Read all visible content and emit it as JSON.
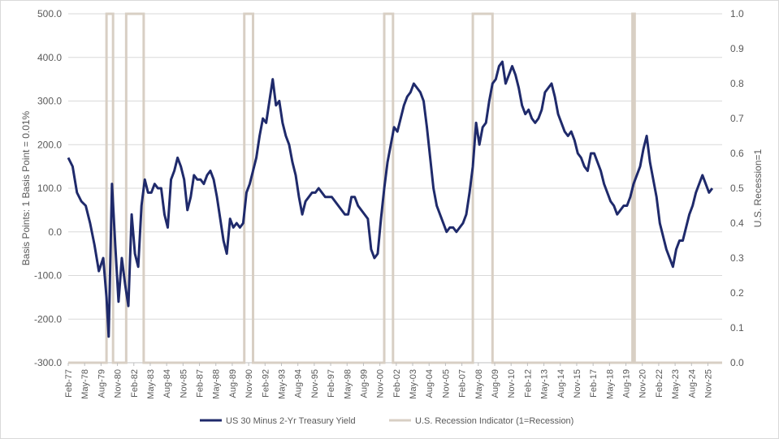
{
  "chart_data": {
    "type": "line",
    "title": "",
    "left_axis": {
      "label": "Basis Points: 1 Basis Point = 0.01%",
      "ylim": [
        -300,
        500
      ],
      "ticks": [
        -300,
        -200,
        -100,
        0,
        100,
        200,
        300,
        400,
        500
      ],
      "tick_labels": [
        "-300.0",
        "-200.0",
        "-100.0",
        "0.0",
        "100.0",
        "200.0",
        "300.0",
        "400.0",
        "500.0"
      ]
    },
    "right_axis": {
      "label": "U.S. Recession=1",
      "ylim": [
        0,
        1
      ],
      "ticks": [
        0,
        0.1,
        0.2,
        0.3,
        0.4,
        0.5,
        0.6,
        0.7,
        0.8,
        0.9,
        1
      ],
      "tick_labels": [
        "0.0",
        "0.1",
        "0.2",
        "0.3",
        "0.4",
        "0.5",
        "0.6",
        "0.7",
        "0.8",
        "0.9",
        "1.0"
      ]
    },
    "x_axis": {
      "range": [
        "1977-02",
        "2026-12"
      ],
      "tick_dates": [
        "1977-02",
        "1978-05",
        "1979-08",
        "1980-11",
        "1982-02",
        "1983-05",
        "1984-08",
        "1985-11",
        "1987-02",
        "1988-05",
        "1989-08",
        "1990-11",
        "1992-02",
        "1993-05",
        "1994-08",
        "1995-11",
        "1997-02",
        "1998-05",
        "1999-08",
        "2000-11",
        "2002-02",
        "2003-05",
        "2004-08",
        "2005-11",
        "2007-02",
        "2008-05",
        "2009-08",
        "2010-11",
        "2012-02",
        "2013-05",
        "2014-08",
        "2015-11",
        "2017-02",
        "2018-05",
        "2019-08",
        "2020-11",
        "2022-02",
        "2023-05",
        "2024-08",
        "2025-11"
      ],
      "tick_labels": [
        "Feb-77",
        "May-78",
        "Aug-79",
        "Nov-80",
        "Feb-82",
        "May-83",
        "Aug-84",
        "Nov-85",
        "Feb-87",
        "May-88",
        "Aug-89",
        "Nov-90",
        "Feb-92",
        "May-93",
        "Aug-94",
        "Nov-95",
        "Feb-97",
        "May-98",
        "Aug-99",
        "Nov-00",
        "Feb-02",
        "May-03",
        "Aug-04",
        "Nov-05",
        "Feb-07",
        "May-08",
        "Aug-09",
        "Nov-10",
        "Feb-12",
        "May-13",
        "Aug-14",
        "Nov-15",
        "Feb-17",
        "May-18",
        "Aug-19",
        "Nov-20",
        "Feb-22",
        "May-23",
        "Aug-24",
        "Nov-25"
      ]
    },
    "grid": true,
    "legend_position": "bottom",
    "series": [
      {
        "name": "US 30 Minus 2-Yr Treasury Yield",
        "axis": "left",
        "color": "#1f2a6b",
        "points": [
          [
            "1977-02",
            170
          ],
          [
            "1977-06",
            150
          ],
          [
            "1977-10",
            90
          ],
          [
            "1978-02",
            70
          ],
          [
            "1978-06",
            60
          ],
          [
            "1978-10",
            20
          ],
          [
            "1979-02",
            -30
          ],
          [
            "1979-06",
            -90
          ],
          [
            "1979-10",
            -60
          ],
          [
            "1980-01",
            -150
          ],
          [
            "1980-03",
            -240
          ],
          [
            "1980-06",
            110
          ],
          [
            "1980-09",
            -30
          ],
          [
            "1980-12",
            -160
          ],
          [
            "1981-03",
            -60
          ],
          [
            "1981-06",
            -120
          ],
          [
            "1981-09",
            -170
          ],
          [
            "1981-12",
            40
          ],
          [
            "1982-03",
            -50
          ],
          [
            "1982-06",
            -80
          ],
          [
            "1982-09",
            60
          ],
          [
            "1982-12",
            120
          ],
          [
            "1983-03",
            90
          ],
          [
            "1983-06",
            90
          ],
          [
            "1983-09",
            110
          ],
          [
            "1983-12",
            100
          ],
          [
            "1984-03",
            100
          ],
          [
            "1984-06",
            40
          ],
          [
            "1984-09",
            10
          ],
          [
            "1984-12",
            120
          ],
          [
            "1985-03",
            140
          ],
          [
            "1985-06",
            170
          ],
          [
            "1985-09",
            150
          ],
          [
            "1985-12",
            120
          ],
          [
            "1986-03",
            50
          ],
          [
            "1986-06",
            80
          ],
          [
            "1986-09",
            130
          ],
          [
            "1986-12",
            120
          ],
          [
            "1987-03",
            120
          ],
          [
            "1987-06",
            110
          ],
          [
            "1987-09",
            130
          ],
          [
            "1987-12",
            140
          ],
          [
            "1988-03",
            120
          ],
          [
            "1988-06",
            80
          ],
          [
            "1988-09",
            30
          ],
          [
            "1988-12",
            -20
          ],
          [
            "1989-03",
            -50
          ],
          [
            "1989-06",
            30
          ],
          [
            "1989-09",
            10
          ],
          [
            "1989-12",
            20
          ],
          [
            "1990-03",
            10
          ],
          [
            "1990-06",
            20
          ],
          [
            "1990-09",
            90
          ],
          [
            "1990-12",
            110
          ],
          [
            "1991-03",
            140
          ],
          [
            "1991-06",
            170
          ],
          [
            "1991-09",
            220
          ],
          [
            "1991-12",
            260
          ],
          [
            "1992-03",
            250
          ],
          [
            "1992-06",
            300
          ],
          [
            "1992-09",
            350
          ],
          [
            "1992-12",
            290
          ],
          [
            "1993-03",
            300
          ],
          [
            "1993-06",
            250
          ],
          [
            "1993-09",
            220
          ],
          [
            "1993-12",
            200
          ],
          [
            "1994-03",
            160
          ],
          [
            "1994-06",
            130
          ],
          [
            "1994-09",
            80
          ],
          [
            "1994-12",
            40
          ],
          [
            "1995-03",
            70
          ],
          [
            "1995-06",
            80
          ],
          [
            "1995-09",
            90
          ],
          [
            "1995-12",
            90
          ],
          [
            "1996-03",
            100
          ],
          [
            "1996-06",
            90
          ],
          [
            "1996-09",
            80
          ],
          [
            "1996-12",
            80
          ],
          [
            "1997-03",
            80
          ],
          [
            "1997-06",
            70
          ],
          [
            "1997-09",
            60
          ],
          [
            "1997-12",
            50
          ],
          [
            "1998-03",
            40
          ],
          [
            "1998-06",
            40
          ],
          [
            "1998-09",
            80
          ],
          [
            "1998-12",
            80
          ],
          [
            "1999-03",
            60
          ],
          [
            "1999-06",
            50
          ],
          [
            "1999-09",
            40
          ],
          [
            "1999-12",
            30
          ],
          [
            "2000-03",
            -40
          ],
          [
            "2000-06",
            -60
          ],
          [
            "2000-09",
            -50
          ],
          [
            "2000-12",
            30
          ],
          [
            "2001-03",
            100
          ],
          [
            "2001-06",
            160
          ],
          [
            "2001-09",
            200
          ],
          [
            "2001-12",
            240
          ],
          [
            "2002-03",
            230
          ],
          [
            "2002-06",
            260
          ],
          [
            "2002-09",
            290
          ],
          [
            "2002-12",
            310
          ],
          [
            "2003-03",
            320
          ],
          [
            "2003-06",
            340
          ],
          [
            "2003-09",
            330
          ],
          [
            "2003-12",
            320
          ],
          [
            "2004-03",
            300
          ],
          [
            "2004-06",
            240
          ],
          [
            "2004-09",
            170
          ],
          [
            "2004-12",
            100
          ],
          [
            "2005-03",
            60
          ],
          [
            "2005-06",
            40
          ],
          [
            "2005-09",
            20
          ],
          [
            "2005-12",
            0
          ],
          [
            "2006-03",
            10
          ],
          [
            "2006-06",
            10
          ],
          [
            "2006-09",
            0
          ],
          [
            "2006-12",
            10
          ],
          [
            "2007-03",
            20
          ],
          [
            "2007-06",
            40
          ],
          [
            "2007-09",
            90
          ],
          [
            "2007-12",
            150
          ],
          [
            "2008-03",
            250
          ],
          [
            "2008-06",
            200
          ],
          [
            "2008-09",
            240
          ],
          [
            "2008-12",
            250
          ],
          [
            "2009-03",
            300
          ],
          [
            "2009-06",
            340
          ],
          [
            "2009-09",
            350
          ],
          [
            "2009-12",
            380
          ],
          [
            "2010-03",
            390
          ],
          [
            "2010-06",
            340
          ],
          [
            "2010-09",
            360
          ],
          [
            "2010-12",
            380
          ],
          [
            "2011-03",
            360
          ],
          [
            "2011-06",
            330
          ],
          [
            "2011-09",
            290
          ],
          [
            "2011-12",
            270
          ],
          [
            "2012-03",
            280
          ],
          [
            "2012-06",
            260
          ],
          [
            "2012-09",
            250
          ],
          [
            "2012-12",
            260
          ],
          [
            "2013-03",
            280
          ],
          [
            "2013-06",
            320
          ],
          [
            "2013-09",
            330
          ],
          [
            "2013-12",
            340
          ],
          [
            "2014-03",
            310
          ],
          [
            "2014-06",
            270
          ],
          [
            "2014-09",
            250
          ],
          [
            "2014-12",
            230
          ],
          [
            "2015-03",
            220
          ],
          [
            "2015-06",
            230
          ],
          [
            "2015-09",
            210
          ],
          [
            "2015-12",
            180
          ],
          [
            "2016-03",
            170
          ],
          [
            "2016-06",
            150
          ],
          [
            "2016-09",
            140
          ],
          [
            "2016-12",
            180
          ],
          [
            "2017-03",
            180
          ],
          [
            "2017-06",
            160
          ],
          [
            "2017-09",
            140
          ],
          [
            "2017-12",
            110
          ],
          [
            "2018-03",
            90
          ],
          [
            "2018-06",
            70
          ],
          [
            "2018-09",
            60
          ],
          [
            "2018-12",
            40
          ],
          [
            "2019-03",
            50
          ],
          [
            "2019-06",
            60
          ],
          [
            "2019-09",
            60
          ],
          [
            "2019-12",
            80
          ],
          [
            "2020-03",
            110
          ],
          [
            "2020-06",
            130
          ],
          [
            "2020-09",
            150
          ],
          [
            "2020-12",
            190
          ],
          [
            "2021-03",
            220
          ],
          [
            "2021-06",
            160
          ],
          [
            "2021-09",
            120
          ],
          [
            "2021-12",
            80
          ],
          [
            "2022-03",
            20
          ],
          [
            "2022-06",
            -10
          ],
          [
            "2022-09",
            -40
          ],
          [
            "2022-12",
            -60
          ],
          [
            "2023-03",
            -80
          ],
          [
            "2023-06",
            -40
          ],
          [
            "2023-09",
            -20
          ],
          [
            "2023-12",
            -20
          ],
          [
            "2024-03",
            10
          ],
          [
            "2024-06",
            40
          ],
          [
            "2024-09",
            60
          ],
          [
            "2024-12",
            90
          ],
          [
            "2025-03",
            110
          ],
          [
            "2025-06",
            130
          ],
          [
            "2025-09",
            110
          ],
          [
            "2025-12",
            90
          ],
          [
            "2026-03",
            100
          ]
        ]
      },
      {
        "name": "U.S. Recession Indicator (1=Recession)",
        "axis": "right",
        "color": "#d8cfc4",
        "recessions": [
          [
            "1980-01",
            "1980-07"
          ],
          [
            "1981-07",
            "1982-11"
          ],
          [
            "1990-07",
            "1991-03"
          ],
          [
            "2001-03",
            "2001-11"
          ],
          [
            "2007-12",
            "2009-06"
          ],
          [
            "2020-02",
            "2020-04"
          ]
        ]
      }
    ]
  }
}
